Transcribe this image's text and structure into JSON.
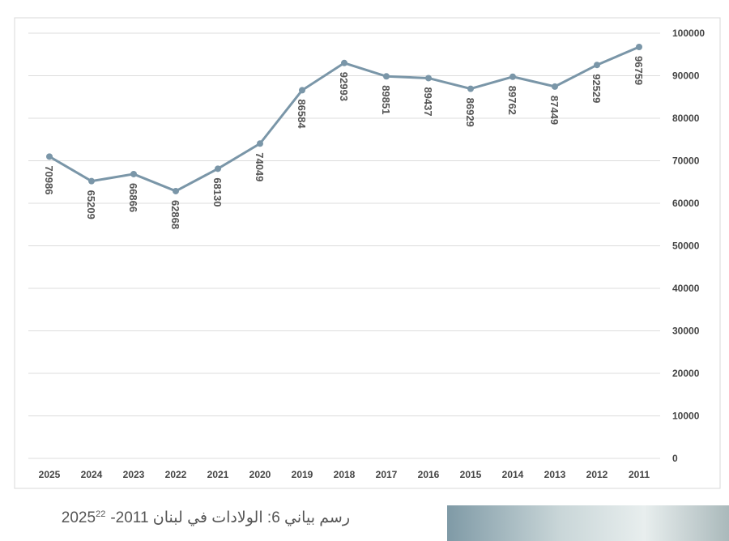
{
  "chart_data": {
    "type": "line",
    "categories": [
      "2025",
      "2024",
      "2023",
      "2022",
      "2021",
      "2020",
      "2019",
      "2018",
      "2017",
      "2016",
      "2015",
      "2014",
      "2013",
      "2012",
      "2011"
    ],
    "values": [
      70986,
      65209,
      66866,
      62868,
      68130,
      74049,
      86584,
      92993,
      89851,
      89437,
      86929,
      89762,
      87449,
      92529,
      96759
    ],
    "color": "#7a96a8",
    "ylim": [
      0,
      100000
    ],
    "yticks": [
      0,
      10000,
      20000,
      30000,
      40000,
      50000,
      60000,
      70000,
      80000,
      90000,
      100000
    ],
    "grid": true
  },
  "caption": {
    "text": "رسم بياني 6:  الولادات في لبنان 2011-2025",
    "footnote": "22"
  }
}
